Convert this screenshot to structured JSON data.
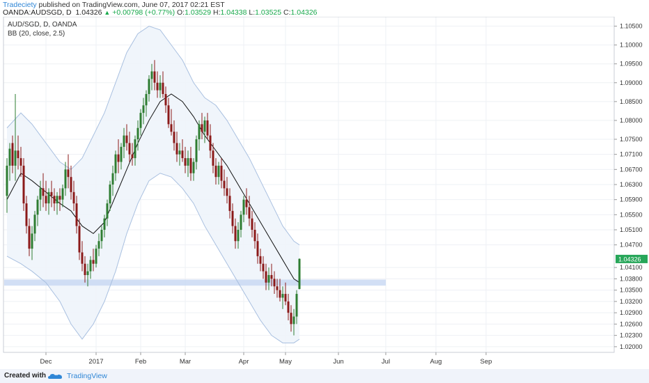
{
  "header": {
    "author": "Tradeciety",
    "published": " published on TradingView.com, June 07, 2017 02:21 EST",
    "symbol": "OANDA:AUDSGD, D",
    "last": "1.04326",
    "change_arrow": "▲",
    "change": "+0.00798 (+0.77%)",
    "o_label": "O:",
    "o_value": "1.03529",
    "h_label": "H:",
    "h_value": "1.04338",
    "l_label": "L:",
    "l_value": "1.03525",
    "c_label": "C:",
    "c_value": "1.04326"
  },
  "legend": {
    "line1": "AUD/SGD, D, OANDA",
    "line2": "BB (20, close, 2.5)"
  },
  "footer": {
    "created_with": "Created with",
    "brand": "TradingView"
  },
  "colors": {
    "up": "#2e7d32",
    "down": "#8b1a1a",
    "band_line": "#a9c0e0",
    "band_fill": "#eef4fb",
    "basis": "#111111",
    "zone": "#c7d7f2",
    "last_badge": "#27a659",
    "grid": "#eef0f4"
  },
  "chart_data": {
    "type": "candlestick",
    "symbol": "AUD/SGD",
    "timeframe": "D",
    "price_range": [
      1.0185,
      1.1075
    ],
    "price_ticks": [
      "1.10500",
      "1.10000",
      "1.09500",
      "1.09000",
      "1.08500",
      "1.08000",
      "1.07500",
      "1.07100",
      "1.06700",
      "1.06300",
      "1.05900",
      "1.05500",
      "1.05100",
      "1.04700",
      "1.04100",
      "1.03800",
      "1.03500",
      "1.03200",
      "1.02900",
      "1.02600",
      "1.02300",
      "1.02000"
    ],
    "time_ticks": [
      {
        "label": "Dec",
        "day": 15
      },
      {
        "label": "2017",
        "day": 33
      },
      {
        "label": "Feb",
        "day": 49
      },
      {
        "label": "Mar",
        "day": 65
      },
      {
        "label": "Apr",
        "day": 86
      },
      {
        "label": "May",
        "day": 101
      },
      {
        "label": "Jun",
        "day": 120
      },
      {
        "label": "Jul",
        "day": 137
      },
      {
        "label": "Aug",
        "day": 155
      },
      {
        "label": "Sep",
        "day": 173
      }
    ],
    "last_price": "1.04326",
    "support_zone": [
      1.0362,
      1.0378
    ],
    "support_zone_days": [
      0,
      137
    ],
    "candles": [
      [
        1,
        1.06,
        1.07,
        1.0555,
        1.068
      ],
      [
        2,
        1.068,
        1.074,
        1.064,
        1.0725
      ],
      [
        3,
        1.074,
        1.076,
        1.066,
        1.068
      ],
      [
        4,
        1.068,
        1.087,
        1.064,
        1.072
      ],
      [
        5,
        1.072,
        1.076,
        1.067,
        1.07
      ],
      [
        6,
        1.07,
        1.073,
        1.065,
        1.068
      ],
      [
        7,
        1.068,
        1.07,
        1.056,
        1.058
      ],
      [
        8,
        1.058,
        1.06,
        1.05,
        1.052
      ],
      [
        9,
        1.052,
        1.054,
        1.044,
        1.046
      ],
      [
        10,
        1.046,
        1.052,
        1.043,
        1.05
      ],
      [
        11,
        1.05,
        1.056,
        1.048,
        1.055
      ],
      [
        12,
        1.055,
        1.06,
        1.052,
        1.059
      ],
      [
        13,
        1.059,
        1.064,
        1.056,
        1.062
      ],
      [
        14,
        1.062,
        1.066,
        1.057,
        1.06
      ],
      [
        15,
        1.06,
        1.064,
        1.056,
        1.058
      ],
      [
        16,
        1.058,
        1.062,
        1.055,
        1.061
      ],
      [
        17,
        1.061,
        1.064,
        1.057,
        1.06
      ],
      [
        18,
        1.06,
        1.062,
        1.056,
        1.058
      ],
      [
        19,
        1.058,
        1.061,
        1.055,
        1.06
      ],
      [
        20,
        1.06,
        1.062,
        1.056,
        1.059
      ],
      [
        21,
        1.059,
        1.063,
        1.057,
        1.062
      ],
      [
        22,
        1.062,
        1.069,
        1.06,
        1.067
      ],
      [
        23,
        1.067,
        1.071,
        1.062,
        1.065
      ],
      [
        24,
        1.065,
        1.068,
        1.059,
        1.061
      ],
      [
        25,
        1.061,
        1.064,
        1.056,
        1.058
      ],
      [
        26,
        1.058,
        1.06,
        1.05,
        1.052
      ],
      [
        27,
        1.052,
        1.054,
        1.043,
        1.045
      ],
      [
        28,
        1.045,
        1.048,
        1.04,
        1.042
      ],
      [
        29,
        1.042,
        1.044,
        1.037,
        1.039
      ],
      [
        30,
        1.039,
        1.042,
        1.036,
        1.04
      ],
      [
        31,
        1.04,
        1.044,
        1.038,
        1.043
      ],
      [
        32,
        1.043,
        1.046,
        1.04,
        1.042
      ],
      [
        33,
        1.042,
        1.047,
        1.041,
        1.046
      ],
      [
        34,
        1.046,
        1.05,
        1.044,
        1.048
      ],
      [
        35,
        1.048,
        1.052,
        1.046,
        1.051
      ],
      [
        36,
        1.051,
        1.055,
        1.049,
        1.054
      ],
      [
        37,
        1.054,
        1.059,
        1.052,
        1.058
      ],
      [
        38,
        1.058,
        1.064,
        1.056,
        1.063
      ],
      [
        39,
        1.063,
        1.068,
        1.06,
        1.066
      ],
      [
        40,
        1.066,
        1.072,
        1.064,
        1.071
      ],
      [
        41,
        1.071,
        1.075,
        1.066,
        1.069
      ],
      [
        42,
        1.069,
        1.074,
        1.067,
        1.073
      ],
      [
        43,
        1.073,
        1.078,
        1.07,
        1.076
      ],
      [
        44,
        1.076,
        1.079,
        1.072,
        1.074
      ],
      [
        45,
        1.074,
        1.077,
        1.069,
        1.071
      ],
      [
        46,
        1.071,
        1.074,
        1.068,
        1.07
      ],
      [
        47,
        1.07,
        1.076,
        1.068,
        1.075
      ],
      [
        48,
        1.075,
        1.08,
        1.072,
        1.078
      ],
      [
        49,
        1.078,
        1.083,
        1.076,
        1.082
      ],
      [
        50,
        1.082,
        1.086,
        1.079,
        1.084
      ],
      [
        51,
        1.084,
        1.088,
        1.081,
        1.087
      ],
      [
        52,
        1.087,
        1.092,
        1.085,
        1.091
      ],
      [
        53,
        1.091,
        1.095,
        1.088,
        1.093
      ],
      [
        54,
        1.093,
        1.096,
        1.088,
        1.09
      ],
      [
        55,
        1.09,
        1.093,
        1.086,
        1.088
      ],
      [
        56,
        1.088,
        1.092,
        1.086,
        1.09
      ],
      [
        57,
        1.09,
        1.093,
        1.086,
        1.087
      ],
      [
        58,
        1.087,
        1.089,
        1.082,
        1.084
      ],
      [
        59,
        1.084,
        1.086,
        1.078,
        1.079
      ],
      [
        60,
        1.079,
        1.083,
        1.076,
        1.077
      ],
      [
        61,
        1.077,
        1.08,
        1.072,
        1.074
      ],
      [
        62,
        1.074,
        1.077,
        1.069,
        1.071
      ],
      [
        63,
        1.071,
        1.074,
        1.068,
        1.072
      ],
      [
        64,
        1.072,
        1.075,
        1.069,
        1.07
      ],
      [
        65,
        1.07,
        1.073,
        1.066,
        1.068
      ],
      [
        66,
        1.068,
        1.072,
        1.065,
        1.07
      ],
      [
        67,
        1.07,
        1.073,
        1.064,
        1.066
      ],
      [
        68,
        1.066,
        1.07,
        1.064,
        1.069
      ],
      [
        69,
        1.069,
        1.076,
        1.067,
        1.075
      ],
      [
        70,
        1.075,
        1.08,
        1.072,
        1.079
      ],
      [
        71,
        1.079,
        1.082,
        1.075,
        1.077
      ],
      [
        72,
        1.077,
        1.081,
        1.074,
        1.08
      ],
      [
        73,
        1.08,
        1.082,
        1.075,
        1.076
      ],
      [
        74,
        1.076,
        1.079,
        1.07,
        1.072
      ],
      [
        75,
        1.072,
        1.074,
        1.066,
        1.068
      ],
      [
        76,
        1.068,
        1.07,
        1.063,
        1.065
      ],
      [
        77,
        1.065,
        1.069,
        1.063,
        1.068
      ],
      [
        78,
        1.068,
        1.07,
        1.062,
        1.064
      ],
      [
        79,
        1.064,
        1.067,
        1.06,
        1.062
      ],
      [
        80,
        1.062,
        1.065,
        1.058,
        1.06
      ],
      [
        81,
        1.06,
        1.062,
        1.054,
        1.056
      ],
      [
        82,
        1.056,
        1.058,
        1.05,
        1.052
      ],
      [
        83,
        1.052,
        1.054,
        1.046,
        1.048
      ],
      [
        84,
        1.048,
        1.053,
        1.046,
        1.051
      ],
      [
        85,
        1.051,
        1.056,
        1.049,
        1.055
      ],
      [
        86,
        1.055,
        1.06,
        1.053,
        1.059
      ],
      [
        87,
        1.059,
        1.062,
        1.055,
        1.057
      ],
      [
        88,
        1.057,
        1.06,
        1.052,
        1.054
      ],
      [
        89,
        1.054,
        1.056,
        1.049,
        1.051
      ],
      [
        90,
        1.051,
        1.053,
        1.046,
        1.048
      ],
      [
        91,
        1.048,
        1.05,
        1.042,
        1.044
      ],
      [
        92,
        1.044,
        1.046,
        1.04,
        1.042
      ],
      [
        93,
        1.042,
        1.044,
        1.038,
        1.04
      ],
      [
        94,
        1.04,
        1.042,
        1.035,
        1.037
      ],
      [
        95,
        1.037,
        1.041,
        1.035,
        1.039
      ],
      [
        96,
        1.039,
        1.042,
        1.036,
        1.038
      ],
      [
        97,
        1.038,
        1.04,
        1.034,
        1.036
      ],
      [
        98,
        1.036,
        1.038,
        1.033,
        1.035
      ],
      [
        99,
        1.035,
        1.038,
        1.032,
        1.033
      ],
      [
        100,
        1.033,
        1.036,
        1.03,
        1.034
      ],
      [
        101,
        1.034,
        1.037,
        1.031,
        1.032
      ],
      [
        102,
        1.032,
        1.034,
        1.027,
        1.029
      ],
      [
        103,
        1.029,
        1.031,
        1.024,
        1.026
      ],
      [
        104,
        1.026,
        1.03,
        1.023,
        1.028
      ],
      [
        105,
        1.028,
        1.035,
        1.026,
        1.034
      ],
      [
        106,
        1.0353,
        1.0434,
        1.0352,
        1.0433
      ]
    ],
    "bb_upper": [
      [
        1,
        1.078
      ],
      [
        6,
        1.082
      ],
      [
        10,
        1.079
      ],
      [
        15,
        1.074
      ],
      [
        20,
        1.069
      ],
      [
        24,
        1.067
      ],
      [
        28,
        1.07
      ],
      [
        32,
        1.076
      ],
      [
        36,
        1.082
      ],
      [
        40,
        1.09
      ],
      [
        44,
        1.098
      ],
      [
        48,
        1.103
      ],
      [
        52,
        1.105
      ],
      [
        56,
        1.104
      ],
      [
        60,
        1.1
      ],
      [
        64,
        1.096
      ],
      [
        68,
        1.09
      ],
      [
        72,
        1.086
      ],
      [
        76,
        1.084
      ],
      [
        80,
        1.08
      ],
      [
        84,
        1.075
      ],
      [
        88,
        1.07
      ],
      [
        92,
        1.064
      ],
      [
        96,
        1.058
      ],
      [
        100,
        1.052
      ],
      [
        104,
        1.048
      ],
      [
        106,
        1.047
      ]
    ],
    "bb_basis": [
      [
        1,
        1.059
      ],
      [
        6,
        1.066
      ],
      [
        10,
        1.064
      ],
      [
        15,
        1.061
      ],
      [
        20,
        1.058
      ],
      [
        24,
        1.056
      ],
      [
        28,
        1.052
      ],
      [
        32,
        1.05
      ],
      [
        36,
        1.053
      ],
      [
        40,
        1.06
      ],
      [
        44,
        1.067
      ],
      [
        48,
        1.074
      ],
      [
        52,
        1.08
      ],
      [
        56,
        1.085
      ],
      [
        60,
        1.087
      ],
      [
        64,
        1.085
      ],
      [
        68,
        1.081
      ],
      [
        72,
        1.076
      ],
      [
        76,
        1.072
      ],
      [
        80,
        1.068
      ],
      [
        84,
        1.063
      ],
      [
        88,
        1.058
      ],
      [
        92,
        1.053
      ],
      [
        96,
        1.048
      ],
      [
        100,
        1.043
      ],
      [
        104,
        1.038
      ],
      [
        106,
        1.037
      ]
    ],
    "bb_lower": [
      [
        1,
        1.044
      ],
      [
        6,
        1.042
      ],
      [
        10,
        1.04
      ],
      [
        15,
        1.037
      ],
      [
        20,
        1.032
      ],
      [
        24,
        1.026
      ],
      [
        28,
        1.022
      ],
      [
        32,
        1.026
      ],
      [
        36,
        1.032
      ],
      [
        40,
        1.04
      ],
      [
        44,
        1.05
      ],
      [
        48,
        1.058
      ],
      [
        52,
        1.064
      ],
      [
        56,
        1.066
      ],
      [
        60,
        1.065
      ],
      [
        64,
        1.062
      ],
      [
        68,
        1.058
      ],
      [
        72,
        1.052
      ],
      [
        76,
        1.047
      ],
      [
        80,
        1.042
      ],
      [
        84,
        1.037
      ],
      [
        88,
        1.032
      ],
      [
        92,
        1.027
      ],
      [
        96,
        1.023
      ],
      [
        100,
        1.021
      ],
      [
        104,
        1.021
      ],
      [
        106,
        1.022
      ]
    ]
  }
}
